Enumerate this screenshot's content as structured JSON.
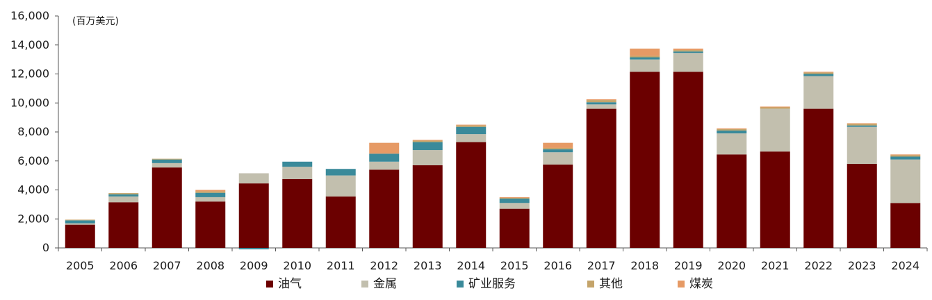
{
  "chart_data": {
    "type": "bar",
    "stacked": true,
    "unit_label": "(百万美元)",
    "title": "",
    "xlabel": "",
    "ylabel": "",
    "ylim": [
      0,
      16000
    ],
    "yticks": [
      0,
      2000,
      4000,
      6000,
      8000,
      10000,
      12000,
      14000,
      16000
    ],
    "ytick_labels": [
      "0",
      "2,000",
      "4,000",
      "6,000",
      "8,000",
      "10,000",
      "12,000",
      "14,000",
      "16,000"
    ],
    "grid": false,
    "legend_position": "bottom",
    "categories": [
      "2005",
      "2006",
      "2007",
      "2008",
      "2009",
      "2010",
      "2011",
      "2012",
      "2013",
      "2014",
      "2015",
      "2016",
      "2017",
      "2018",
      "2019",
      "2020",
      "2021",
      "2022",
      "2023",
      "2024"
    ],
    "series": [
      {
        "name": "油气",
        "color": "#6b0000",
        "values": [
          1600,
          3150,
          5550,
          3200,
          4450,
          4750,
          3550,
          5400,
          5700,
          7300,
          2700,
          5750,
          9600,
          12150,
          12150,
          6450,
          6650,
          9600,
          5800,
          3100
        ]
      },
      {
        "name": "金属",
        "color": "#c2bfae",
        "values": [
          100,
          400,
          300,
          300,
          700,
          850,
          1450,
          550,
          1050,
          550,
          400,
          850,
          300,
          850,
          1300,
          1450,
          2950,
          2250,
          2550,
          3000
        ]
      },
      {
        "name": "矿业服务",
        "color": "#3a8a9a",
        "values": [
          200,
          150,
          250,
          300,
          -100,
          350,
          450,
          550,
          550,
          500,
          300,
          200,
          150,
          150,
          100,
          200,
          0,
          150,
          100,
          200
        ]
      },
      {
        "name": "其他",
        "color": "#c4a46a",
        "values": [
          50,
          80,
          50,
          100,
          0,
          0,
          0,
          0,
          100,
          100,
          50,
          100,
          150,
          100,
          100,
          100,
          100,
          100,
          100,
          100
        ]
      },
      {
        "name": "煤炭",
        "color": "#e69a65",
        "values": [
          0,
          0,
          0,
          100,
          0,
          0,
          0,
          750,
          50,
          50,
          50,
          350,
          50,
          500,
          100,
          50,
          50,
          50,
          50,
          50
        ]
      }
    ]
  }
}
